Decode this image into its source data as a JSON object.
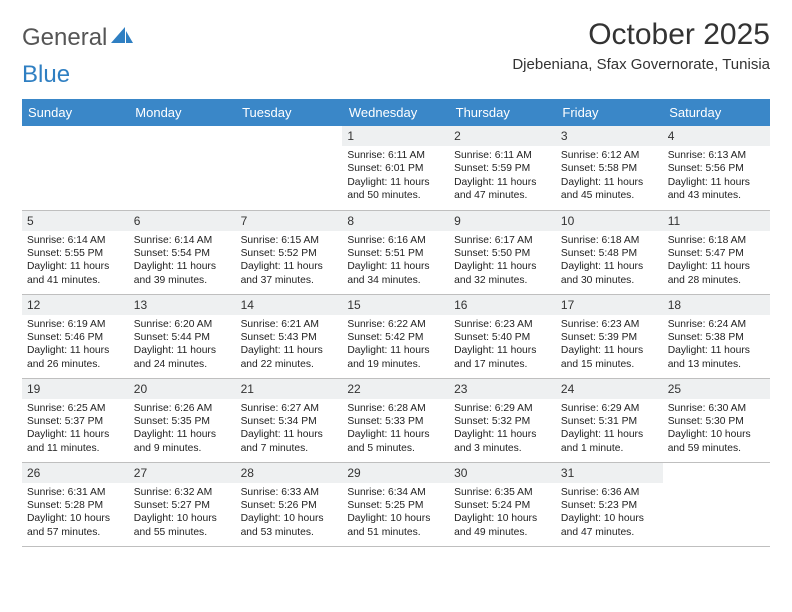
{
  "brand": {
    "word1": "General",
    "word2": "Blue",
    "color_gray": "#6a6a6a",
    "color_blue": "#2f7fc2"
  },
  "title": "October 2025",
  "subtitle": "Djebeniana, Sfax Governorate, Tunisia",
  "header_bg": "#3a87c8",
  "daynum_bg": "#eef0f1",
  "border_color": "#bfbfbf",
  "days_of_week": [
    "Sunday",
    "Monday",
    "Tuesday",
    "Wednesday",
    "Thursday",
    "Friday",
    "Saturday"
  ],
  "weeks": [
    [
      {
        "empty": true
      },
      {
        "empty": true
      },
      {
        "empty": true
      },
      {
        "n": "1",
        "sr": "6:11 AM",
        "ss": "6:01 PM",
        "dl": "11 hours and 50 minutes."
      },
      {
        "n": "2",
        "sr": "6:11 AM",
        "ss": "5:59 PM",
        "dl": "11 hours and 47 minutes."
      },
      {
        "n": "3",
        "sr": "6:12 AM",
        "ss": "5:58 PM",
        "dl": "11 hours and 45 minutes."
      },
      {
        "n": "4",
        "sr": "6:13 AM",
        "ss": "5:56 PM",
        "dl": "11 hours and 43 minutes."
      }
    ],
    [
      {
        "n": "5",
        "sr": "6:14 AM",
        "ss": "5:55 PM",
        "dl": "11 hours and 41 minutes."
      },
      {
        "n": "6",
        "sr": "6:14 AM",
        "ss": "5:54 PM",
        "dl": "11 hours and 39 minutes."
      },
      {
        "n": "7",
        "sr": "6:15 AM",
        "ss": "5:52 PM",
        "dl": "11 hours and 37 minutes."
      },
      {
        "n": "8",
        "sr": "6:16 AM",
        "ss": "5:51 PM",
        "dl": "11 hours and 34 minutes."
      },
      {
        "n": "9",
        "sr": "6:17 AM",
        "ss": "5:50 PM",
        "dl": "11 hours and 32 minutes."
      },
      {
        "n": "10",
        "sr": "6:18 AM",
        "ss": "5:48 PM",
        "dl": "11 hours and 30 minutes."
      },
      {
        "n": "11",
        "sr": "6:18 AM",
        "ss": "5:47 PM",
        "dl": "11 hours and 28 minutes."
      }
    ],
    [
      {
        "n": "12",
        "sr": "6:19 AM",
        "ss": "5:46 PM",
        "dl": "11 hours and 26 minutes."
      },
      {
        "n": "13",
        "sr": "6:20 AM",
        "ss": "5:44 PM",
        "dl": "11 hours and 24 minutes."
      },
      {
        "n": "14",
        "sr": "6:21 AM",
        "ss": "5:43 PM",
        "dl": "11 hours and 22 minutes."
      },
      {
        "n": "15",
        "sr": "6:22 AM",
        "ss": "5:42 PM",
        "dl": "11 hours and 19 minutes."
      },
      {
        "n": "16",
        "sr": "6:23 AM",
        "ss": "5:40 PM",
        "dl": "11 hours and 17 minutes."
      },
      {
        "n": "17",
        "sr": "6:23 AM",
        "ss": "5:39 PM",
        "dl": "11 hours and 15 minutes."
      },
      {
        "n": "18",
        "sr": "6:24 AM",
        "ss": "5:38 PM",
        "dl": "11 hours and 13 minutes."
      }
    ],
    [
      {
        "n": "19",
        "sr": "6:25 AM",
        "ss": "5:37 PM",
        "dl": "11 hours and 11 minutes."
      },
      {
        "n": "20",
        "sr": "6:26 AM",
        "ss": "5:35 PM",
        "dl": "11 hours and 9 minutes."
      },
      {
        "n": "21",
        "sr": "6:27 AM",
        "ss": "5:34 PM",
        "dl": "11 hours and 7 minutes."
      },
      {
        "n": "22",
        "sr": "6:28 AM",
        "ss": "5:33 PM",
        "dl": "11 hours and 5 minutes."
      },
      {
        "n": "23",
        "sr": "6:29 AM",
        "ss": "5:32 PM",
        "dl": "11 hours and 3 minutes."
      },
      {
        "n": "24",
        "sr": "6:29 AM",
        "ss": "5:31 PM",
        "dl": "11 hours and 1 minute."
      },
      {
        "n": "25",
        "sr": "6:30 AM",
        "ss": "5:30 PM",
        "dl": "10 hours and 59 minutes."
      }
    ],
    [
      {
        "n": "26",
        "sr": "6:31 AM",
        "ss": "5:28 PM",
        "dl": "10 hours and 57 minutes."
      },
      {
        "n": "27",
        "sr": "6:32 AM",
        "ss": "5:27 PM",
        "dl": "10 hours and 55 minutes."
      },
      {
        "n": "28",
        "sr": "6:33 AM",
        "ss": "5:26 PM",
        "dl": "10 hours and 53 minutes."
      },
      {
        "n": "29",
        "sr": "6:34 AM",
        "ss": "5:25 PM",
        "dl": "10 hours and 51 minutes."
      },
      {
        "n": "30",
        "sr": "6:35 AM",
        "ss": "5:24 PM",
        "dl": "10 hours and 49 minutes."
      },
      {
        "n": "31",
        "sr": "6:36 AM",
        "ss": "5:23 PM",
        "dl": "10 hours and 47 minutes."
      },
      {
        "empty": true
      }
    ]
  ],
  "labels": {
    "sunrise": "Sunrise:",
    "sunset": "Sunset:",
    "daylight": "Daylight:"
  }
}
